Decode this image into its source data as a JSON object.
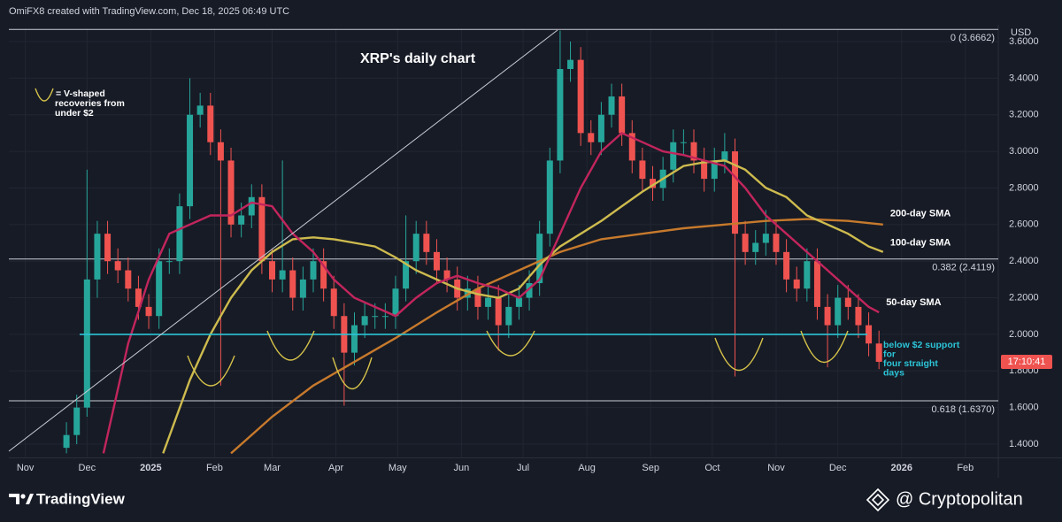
{
  "header": "OmiFX8 created with TradingView.com, Dec 18, 2025 06:49 UTC",
  "footer": {
    "brand": "TradingView",
    "credit": "@ Cryptopolitan"
  },
  "chart_data": {
    "type": "candlestick",
    "title": "XRP's daily chart",
    "currency": "USD",
    "countdown": "17:10:41",
    "up_color": "#26a69a",
    "down_color": "#ef5350",
    "grid": true,
    "xlim": [
      -8,
      473
    ],
    "ylim": [
      1.33,
      3.67
    ],
    "xticks": [
      {
        "value": 0,
        "label": "Nov"
      },
      {
        "value": 30,
        "label": "Dec"
      },
      {
        "value": 61,
        "label": "2025"
      },
      {
        "value": 92,
        "label": "Feb"
      },
      {
        "value": 120,
        "label": "Mar"
      },
      {
        "value": 151,
        "label": "Apr"
      },
      {
        "value": 181,
        "label": "May"
      },
      {
        "value": 212,
        "label": "Jun"
      },
      {
        "value": 242,
        "label": "Jul"
      },
      {
        "value": 273,
        "label": "Aug"
      },
      {
        "value": 304,
        "label": "Sep"
      },
      {
        "value": 334,
        "label": "Oct"
      },
      {
        "value": 365,
        "label": "Nov"
      },
      {
        "value": 395,
        "label": "Dec"
      },
      {
        "value": 426,
        "label": "2026"
      },
      {
        "value": 457,
        "label": "Feb"
      }
    ],
    "yticks": [
      {
        "value": 1.4,
        "label": "1.4000"
      },
      {
        "value": 1.6,
        "label": "1.6000"
      },
      {
        "value": 1.8,
        "label": "1.8000"
      },
      {
        "value": 2.0,
        "label": "2.0000"
      },
      {
        "value": 2.2,
        "label": "2.2000"
      },
      {
        "value": 2.4,
        "label": "2.4000"
      },
      {
        "value": 2.6,
        "label": "2.6000"
      },
      {
        "value": 2.8,
        "label": "2.8000"
      },
      {
        "value": 3.0,
        "label": "3.0000"
      },
      {
        "value": 3.2,
        "label": "3.2000"
      },
      {
        "value": 3.4,
        "label": "3.4000"
      },
      {
        "value": 3.6,
        "label": "3.6000"
      }
    ],
    "candles": {
      "x": [
        20,
        25,
        30,
        35,
        40,
        45,
        50,
        55,
        60,
        65,
        70,
        75,
        80,
        85,
        90,
        95,
        100,
        105,
        110,
        115,
        120,
        125,
        130,
        135,
        140,
        145,
        150,
        155,
        160,
        165,
        170,
        175,
        180,
        185,
        190,
        195,
        200,
        205,
        210,
        215,
        220,
        225,
        230,
        235,
        240,
        245,
        250,
        255,
        260,
        265,
        270,
        275,
        280,
        285,
        290,
        295,
        300,
        305,
        310,
        315,
        320,
        325,
        330,
        335,
        340,
        345,
        350,
        355,
        360,
        365,
        370,
        375,
        380,
        385,
        390,
        395,
        400,
        405,
        410,
        415
      ],
      "open": [
        1.38,
        1.45,
        1.6,
        2.3,
        2.55,
        2.4,
        2.35,
        2.25,
        2.15,
        2.1,
        2.4,
        2.4,
        2.7,
        3.2,
        3.25,
        3.05,
        2.95,
        2.6,
        2.65,
        2.75,
        2.4,
        2.3,
        2.35,
        2.2,
        2.3,
        2.4,
        2.25,
        2.1,
        1.9,
        2.05,
        2.1,
        2.1,
        2.1,
        2.25,
        2.4,
        2.55,
        2.45,
        2.35,
        2.3,
        2.2,
        2.25,
        2.15,
        2.2,
        2.05,
        2.15,
        2.2,
        2.28,
        2.55,
        2.95,
        3.45,
        3.5,
        3.1,
        3.05,
        3.2,
        3.3,
        3.1,
        2.95,
        2.85,
        2.8,
        2.9,
        3.05,
        3.05,
        2.95,
        2.85,
        2.95,
        3.0,
        2.55,
        2.45,
        2.5,
        2.55,
        2.45,
        2.3,
        2.25,
        2.4,
        2.15,
        2.05,
        2.2,
        2.15,
        2.05,
        1.95
      ],
      "high": [
        1.52,
        1.67,
        2.9,
        2.62,
        2.62,
        2.47,
        2.42,
        2.32,
        2.22,
        2.47,
        2.47,
        2.77,
        3.4,
        3.32,
        3.32,
        3.12,
        3.02,
        2.72,
        2.82,
        2.82,
        2.47,
        2.95,
        2.42,
        2.37,
        2.47,
        2.47,
        2.32,
        2.17,
        2.12,
        2.17,
        2.17,
        2.17,
        2.32,
        2.65,
        2.62,
        2.62,
        2.52,
        2.42,
        2.37,
        2.32,
        2.32,
        2.27,
        2.27,
        2.22,
        2.27,
        2.35,
        2.62,
        3.02,
        3.66,
        3.6,
        3.57,
        3.17,
        3.27,
        3.37,
        3.37,
        3.17,
        3.02,
        2.92,
        2.97,
        3.12,
        3.12,
        3.12,
        3.02,
        3.02,
        3.1,
        3.07,
        2.62,
        2.57,
        2.68,
        2.62,
        2.52,
        2.37,
        2.47,
        2.47,
        2.22,
        2.27,
        2.27,
        2.22,
        2.12,
        2.02
      ],
      "low": [
        1.35,
        1.4,
        1.55,
        2.2,
        2.33,
        2.28,
        2.18,
        2.08,
        2.03,
        2.03,
        2.33,
        2.33,
        2.63,
        3.13,
        2.98,
        1.72,
        2.53,
        2.53,
        2.58,
        2.33,
        2.23,
        2.23,
        2.13,
        2.13,
        2.23,
        2.18,
        2.03,
        1.61,
        1.83,
        1.98,
        2.03,
        2.03,
        2.03,
        2.18,
        2.33,
        2.38,
        2.28,
        2.23,
        2.13,
        2.13,
        2.08,
        2.08,
        1.91,
        1.98,
        2.08,
        2.13,
        2.21,
        2.48,
        2.88,
        3.38,
        3.03,
        2.98,
        2.98,
        3.13,
        3.03,
        2.88,
        2.78,
        2.73,
        2.73,
        2.83,
        2.98,
        2.88,
        2.78,
        2.78,
        2.88,
        1.77,
        2.38,
        2.38,
        2.43,
        2.38,
        2.23,
        2.18,
        2.18,
        2.08,
        1.82,
        1.98,
        2.08,
        1.98,
        1.88,
        1.81
      ],
      "close": [
        1.45,
        1.6,
        2.3,
        2.55,
        2.4,
        2.35,
        2.25,
        2.15,
        2.1,
        2.4,
        2.4,
        2.7,
        3.2,
        3.25,
        3.05,
        2.95,
        2.6,
        2.65,
        2.75,
        2.4,
        2.3,
        2.35,
        2.2,
        2.3,
        2.4,
        2.25,
        2.1,
        1.9,
        2.05,
        2.1,
        2.1,
        2.1,
        2.25,
        2.4,
        2.55,
        2.45,
        2.35,
        2.3,
        2.2,
        2.25,
        2.15,
        2.2,
        2.05,
        2.15,
        2.2,
        2.28,
        2.55,
        2.95,
        3.45,
        3.5,
        3.1,
        3.05,
        3.2,
        3.3,
        3.1,
        2.95,
        2.85,
        2.8,
        2.9,
        3.05,
        3.05,
        2.95,
        2.85,
        2.95,
        3.0,
        2.55,
        2.45,
        2.5,
        2.55,
        2.45,
        2.3,
        2.25,
        2.4,
        2.15,
        2.05,
        2.2,
        2.15,
        2.05,
        1.95,
        1.85
      ]
    },
    "series": [
      {
        "name": "200-day SMA",
        "color": "#c77a2c",
        "x": [
          100,
          120,
          140,
          160,
          180,
          200,
          220,
          240,
          260,
          280,
          300,
          320,
          340,
          360,
          380,
          400,
          417
        ],
        "values": [
          1.35,
          1.55,
          1.72,
          1.85,
          1.98,
          2.12,
          2.25,
          2.35,
          2.45,
          2.52,
          2.55,
          2.58,
          2.6,
          2.62,
          2.63,
          2.62,
          2.6
        ]
      },
      {
        "name": "100-day SMA",
        "color": "#cdbb4e",
        "x": [
          67,
          80,
          90,
          100,
          110,
          120,
          130,
          140,
          150,
          160,
          170,
          180,
          190,
          200,
          210,
          220,
          230,
          240,
          250,
          260,
          270,
          280,
          290,
          300,
          310,
          320,
          330,
          340,
          350,
          360,
          370,
          380,
          390,
          400,
          410,
          417
        ],
        "values": [
          1.35,
          1.75,
          2.0,
          2.2,
          2.35,
          2.45,
          2.52,
          2.53,
          2.52,
          2.5,
          2.48,
          2.42,
          2.35,
          2.3,
          2.25,
          2.22,
          2.2,
          2.25,
          2.38,
          2.48,
          2.55,
          2.62,
          2.7,
          2.78,
          2.85,
          2.92,
          2.94,
          2.95,
          2.9,
          2.8,
          2.75,
          2.65,
          2.6,
          2.55,
          2.48,
          2.45
        ]
      },
      {
        "name": "50-day SMA",
        "color": "#c2255c",
        "x": [
          38,
          50,
          60,
          70,
          80,
          90,
          100,
          110,
          120,
          130,
          140,
          150,
          160,
          170,
          180,
          190,
          200,
          210,
          220,
          230,
          240,
          250,
          260,
          270,
          280,
          290,
          300,
          310,
          320,
          330,
          340,
          350,
          360,
          370,
          380,
          390,
          400,
          410,
          415
        ],
        "values": [
          1.35,
          1.95,
          2.3,
          2.55,
          2.6,
          2.65,
          2.65,
          2.72,
          2.7,
          2.55,
          2.45,
          2.3,
          2.2,
          2.15,
          2.1,
          2.2,
          2.28,
          2.32,
          2.28,
          2.25,
          2.2,
          2.3,
          2.55,
          2.8,
          3.0,
          3.1,
          3.05,
          3.0,
          2.98,
          2.95,
          2.92,
          2.8,
          2.65,
          2.55,
          2.45,
          2.35,
          2.25,
          2.15,
          2.12
        ]
      }
    ],
    "levels": [
      {
        "label": "0 (3.6662)",
        "value": 3.6662
      },
      {
        "label": "0.382 (2.4119)",
        "value": 2.4119
      },
      {
        "label": "0.618 (1.6370)",
        "value": 1.637
      }
    ],
    "support": 2.0,
    "support_color": "#2bc4d6",
    "annotations": {
      "legend": [
        "= V-shaped",
        "recoveries from",
        "under $2"
      ],
      "support_note": [
        "below $2 support",
        "for",
        "four straight",
        "days"
      ]
    }
  }
}
